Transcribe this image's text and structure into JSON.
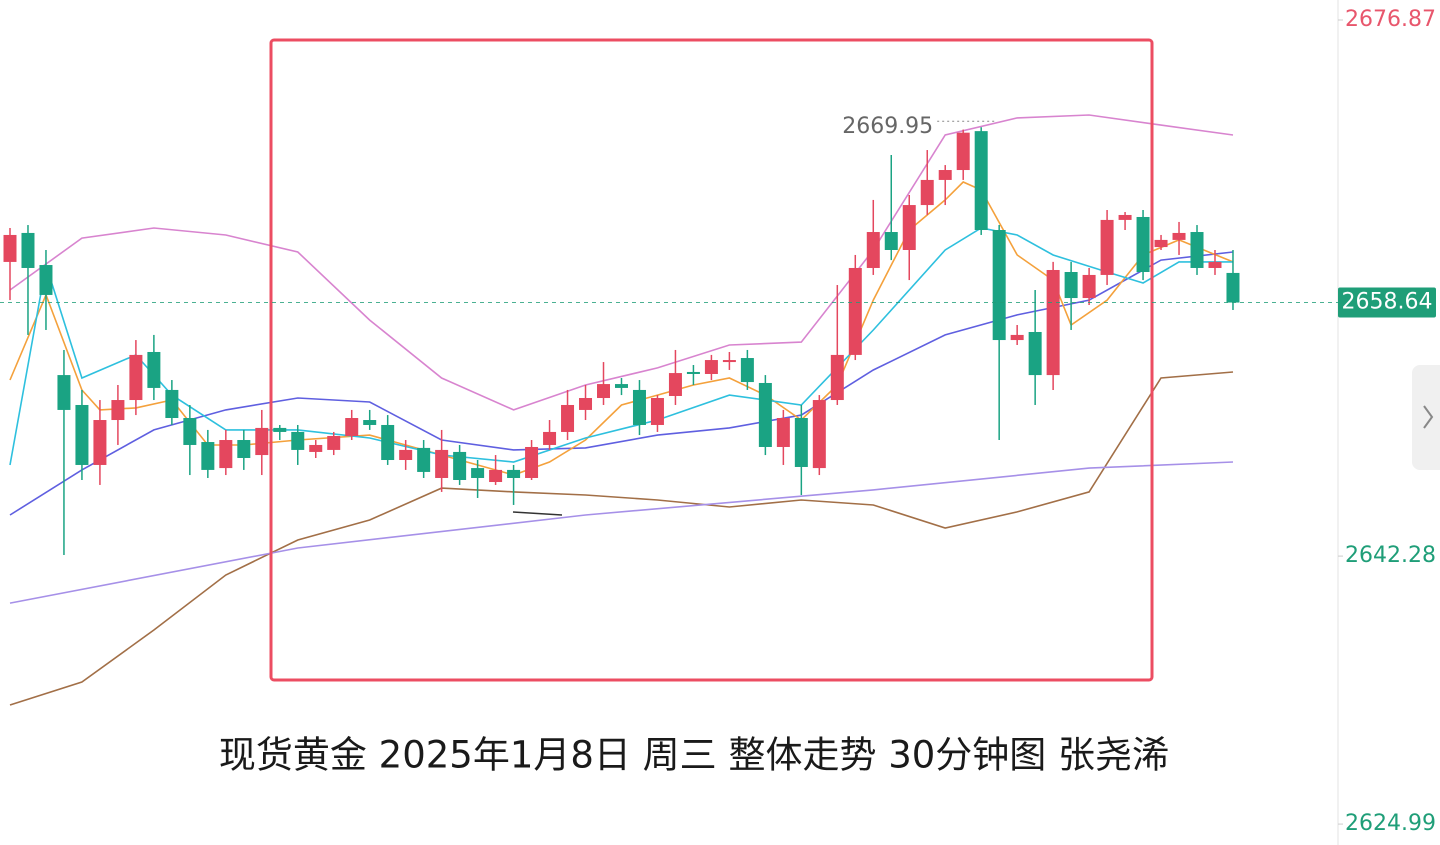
{
  "chart_data": {
    "type": "candlestick",
    "title": "现货黄金 2025年1月8日 周三 整体走势 30分钟图 张尧浠",
    "ylim": [
      2623.64,
      2678.16
    ],
    "yticks": [
      2676.87,
      2642.28,
      2624.99
    ],
    "ytick_colors": [
      "#e8566c",
      "#1f9e78",
      "#1f9e78"
    ],
    "up_color": "#e4475e",
    "down_color": "#1aa383",
    "last_price": 2658.64,
    "last_price_color": "#1f9e78",
    "high_label": 2669.95,
    "open": [
      2661.26,
      2663.13,
      2661.06,
      2653.96,
      2652.03,
      2648.16,
      2651.06,
      2652.35,
      2655.45,
      2653.0,
      2651.19,
      2649.64,
      2647.96,
      2649.77,
      2648.8,
      2650.55,
      2650.29,
      2649.0,
      2649.13,
      2650.03,
      2651.06,
      2650.74,
      2648.48,
      2649.26,
      2647.32,
      2649.0,
      2647.96,
      2647.06,
      2647.84,
      2647.32,
      2649.45,
      2650.29,
      2651.71,
      2652.48,
      2653.38,
      2653.0,
      2650.74,
      2652.61,
      2654.16,
      2654.03,
      2654.8,
      2655.06,
      2653.45,
      2649.32,
      2651.19,
      2647.96,
      2652.35,
      2655.26,
      2660.87,
      2663.19,
      2662.03,
      2664.93,
      2666.55,
      2667.19,
      2669.7,
      2663.32,
      2656.22,
      2656.74,
      2653.96,
      2660.61,
      2658.93,
      2660.42,
      2663.97,
      2664.16,
      2662.22,
      2662.68,
      2663.19,
      2660.87,
      2660.55
    ],
    "high": [
      2663.45,
      2663.64,
      2662.03,
      2655.58,
      2653.0,
      2652.35,
      2653.32,
      2656.22,
      2656.55,
      2653.64,
      2652.03,
      2650.42,
      2650.42,
      2650.42,
      2651.71,
      2650.74,
      2650.74,
      2649.77,
      2650.29,
      2651.71,
      2651.71,
      2651.38,
      2649.77,
      2649.77,
      2650.42,
      2649.45,
      2648.48,
      2648.8,
      2648.16,
      2649.77,
      2651.06,
      2653.0,
      2653.32,
      2654.8,
      2653.77,
      2653.64,
      2652.67,
      2655.58,
      2654.61,
      2655.26,
      2655.45,
      2655.58,
      2653.96,
      2651.71,
      2652.03,
      2652.67,
      2659.77,
      2661.71,
      2665.26,
      2668.16,
      2665.58,
      2668.48,
      2667.51,
      2669.8,
      2669.95,
      2663.64,
      2657.19,
      2659.45,
      2661.26,
      2661.26,
      2660.87,
      2664.61,
      2664.48,
      2664.61,
      2663.0,
      2663.84,
      2663.64,
      2662.03,
      2662.03
    ],
    "low": [
      2658.8,
      2656.55,
      2656.87,
      2642.35,
      2647.19,
      2646.87,
      2649.45,
      2651.38,
      2652.35,
      2650.74,
      2647.51,
      2647.32,
      2647.51,
      2647.84,
      2647.51,
      2649.77,
      2648.16,
      2648.61,
      2648.8,
      2649.77,
      2650.42,
      2648.16,
      2647.84,
      2647.32,
      2646.42,
      2646.87,
      2646.03,
      2646.87,
      2645.58,
      2647.19,
      2649.13,
      2649.77,
      2651.06,
      2652.03,
      2652.67,
      2650.09,
      2650.29,
      2652.03,
      2653.32,
      2653.64,
      2654.29,
      2653.0,
      2648.8,
      2648.16,
      2646.22,
      2647.51,
      2652.03,
      2654.93,
      2660.42,
      2661.38,
      2660.09,
      2664.29,
      2664.93,
      2666.55,
      2663.0,
      2649.77,
      2655.9,
      2652.03,
      2653.0,
      2656.87,
      2658.48,
      2659.77,
      2663.32,
      2660.09,
      2662.03,
      2661.71,
      2660.42,
      2660.42,
      2658.16
    ],
    "close": [
      2663.0,
      2660.87,
      2659.13,
      2651.71,
      2648.16,
      2651.06,
      2652.35,
      2655.26,
      2653.13,
      2651.19,
      2649.45,
      2647.84,
      2649.77,
      2648.61,
      2650.55,
      2650.29,
      2649.13,
      2649.45,
      2650.03,
      2651.19,
      2650.74,
      2648.48,
      2649.13,
      2647.71,
      2649.13,
      2647.19,
      2647.32,
      2647.84,
      2647.32,
      2649.32,
      2650.29,
      2652.03,
      2652.48,
      2653.38,
      2653.13,
      2650.74,
      2652.48,
      2654.09,
      2654.03,
      2654.93,
      2654.93,
      2653.51,
      2649.32,
      2651.19,
      2648.03,
      2652.35,
      2655.26,
      2660.87,
      2663.19,
      2662.03,
      2664.93,
      2666.55,
      2667.19,
      2669.6,
      2663.32,
      2656.22,
      2656.55,
      2653.96,
      2660.74,
      2658.93,
      2660.42,
      2663.97,
      2664.29,
      2660.61,
      2662.68,
      2663.13,
      2660.87,
      2661.26,
      2658.64
    ],
    "lines": [
      {
        "color": "#d884cf",
        "x": [
          0,
          4,
          8,
          12,
          16,
          20,
          24,
          28,
          32,
          36,
          40,
          44,
          48,
          52,
          56,
          60,
          64,
          68
        ],
        "values": [
          2659.45,
          2662.8,
          2663.45,
          2663.0,
          2661.9,
          2657.51,
          2653.77,
          2651.71,
          2653.32,
          2654.42,
          2655.9,
          2656.09,
          2662.03,
          2669.45,
          2670.55,
          2670.74,
          2670.09,
          2669.45
        ]
      },
      {
        "color": "#a26f47",
        "x": [
          0,
          4,
          8,
          12,
          16,
          20,
          24,
          28,
          32,
          36,
          40,
          44,
          48,
          52,
          56,
          60,
          64,
          68
        ],
        "values": [
          2632.67,
          2634.16,
          2637.51,
          2641.06,
          2643.32,
          2644.61,
          2646.67,
          2646.42,
          2646.22,
          2645.9,
          2645.45,
          2645.9,
          2645.58,
          2644.09,
          2645.13,
          2646.42,
          2653.77,
          2654.16
        ]
      },
      {
        "color": "#5f5fe0",
        "x": [
          0,
          4,
          8,
          12,
          16,
          20,
          24,
          28,
          32,
          36,
          40,
          44,
          48,
          52,
          56,
          60,
          64,
          68
        ],
        "values": [
          2644.93,
          2647.84,
          2650.42,
          2651.71,
          2652.48,
          2652.22,
          2649.77,
          2649.13,
          2649.26,
          2650.09,
          2650.55,
          2651.38,
          2654.29,
          2656.55,
          2657.84,
          2658.8,
          2661.38,
          2661.9
        ]
      },
      {
        "color": "#a690e8",
        "x": [
          0,
          16,
          32,
          48,
          60,
          68
        ],
        "values": [
          2639.25,
          2642.8,
          2644.93,
          2646.55,
          2647.96,
          2648.35
        ]
      },
      {
        "color": "#f4a13c",
        "x": [
          0,
          2,
          4,
          5,
          7,
          9,
          11,
          13,
          16,
          20,
          24,
          28,
          30,
          32,
          34,
          36,
          38,
          40,
          42,
          44,
          46,
          48,
          50,
          52,
          53,
          54,
          56,
          58,
          59,
          61,
          63,
          65,
          68
        ],
        "values": [
          2653.64,
          2659.13,
          2653.0,
          2651.71,
          2651.84,
          2652.35,
          2649.45,
          2649.45,
          2649.77,
          2650.09,
          2648.8,
          2647.51,
          2648.35,
          2649.77,
          2652.03,
          2652.67,
          2653.32,
          2653.77,
          2652.67,
          2651.06,
          2653.32,
          2658.8,
          2663.32,
          2665.26,
          2666.42,
          2665.9,
          2661.71,
          2660.09,
          2657.19,
          2658.8,
          2661.71,
          2662.68,
          2661.26
        ]
      },
      {
        "color": "#2ec0de",
        "x": [
          0,
          2,
          4,
          7,
          9,
          12,
          16,
          20,
          24,
          28,
          32,
          36,
          40,
          44,
          48,
          52,
          54,
          56,
          58,
          61,
          63,
          65,
          68
        ],
        "values": [
          2648.16,
          2661.06,
          2653.77,
          2655.26,
          2652.67,
          2650.42,
          2650.42,
          2649.9,
          2648.8,
          2648.35,
          2649.9,
          2651.06,
          2652.67,
          2652.03,
          2656.87,
          2662.03,
          2663.45,
          2663.0,
          2661.71,
          2660.61,
          2659.9,
          2661.26,
          2661.26
        ]
      }
    ]
  }
}
